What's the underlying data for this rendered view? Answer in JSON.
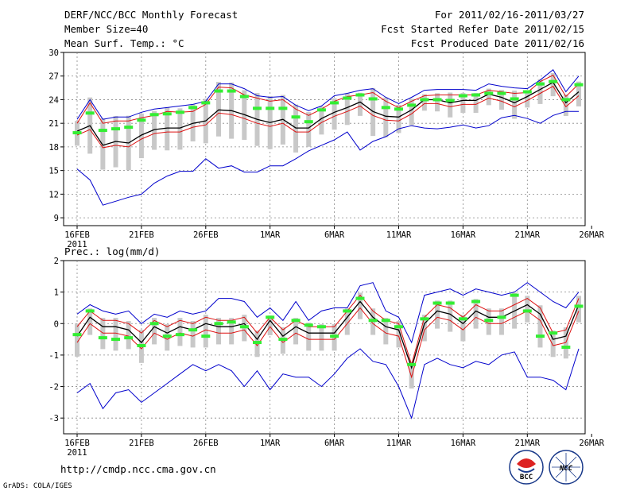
{
  "header": {
    "title": "DERF/NCC/BCC Monthly Forecast",
    "member_size": "Member Size=40",
    "variable": "Mean Surf. Temp.: °C",
    "period": "For 2011/02/16-2011/03/27",
    "started": "Fcst Started Refer Date 2011/02/15",
    "produced": "Fcst Produced Date 2011/02/16"
  },
  "footer": {
    "url": "http://cmdp.ncc.cma.gov.cn",
    "grads": "GrADS: COLA/IGES",
    "logo_bcc": "BCC",
    "logo_ncc": "NCC"
  },
  "colors": {
    "envelope": "#0000cc",
    "spread": "#dd1111",
    "mean": "#000000",
    "box": "#c8c8c8",
    "marker": "#33ee33",
    "grid": "#888888"
  },
  "chart_data": [
    {
      "type": "line",
      "title": "Mean Surf. Temp.: °C",
      "x_labels": [
        "16FEB",
        "21FEB",
        "26FEB",
        "1MAR",
        "6MAR",
        "11MAR",
        "16MAR",
        "21MAR",
        "26MAR"
      ],
      "x_year": "2011",
      "ylim": [
        8,
        30
      ],
      "y_ticks": [
        9,
        12,
        15,
        18,
        21,
        24,
        27,
        30
      ],
      "days": 40,
      "series": [
        {
          "name": "max",
          "values": [
            21.5,
            24,
            21.5,
            21.8,
            21.8,
            22.4,
            22.8,
            23,
            23.2,
            23.4,
            23.8,
            26,
            26,
            25.4,
            24.5,
            24.3,
            24.4,
            23.3,
            22.6,
            23.2,
            24.5,
            24.8,
            25.2,
            25.4,
            24.3,
            23.5,
            24.3,
            25.2,
            25.3,
            25.3,
            25.3,
            25.2,
            26,
            25.7,
            25.5,
            25.4,
            26.5,
            27.8,
            25,
            27
          ]
        },
        {
          "name": "upper",
          "values": [
            21,
            23.6,
            21,
            21.3,
            21.3,
            21.7,
            22,
            22.5,
            22.4,
            22.5,
            23.4,
            25.6,
            25.5,
            24.6,
            24.2,
            23.8,
            24,
            22.8,
            22,
            22.8,
            23.8,
            24.4,
            24.6,
            24.9,
            23.8,
            23,
            23.8,
            24.5,
            24.6,
            24.6,
            24.6,
            24.6,
            25.2,
            25,
            24.8,
            24.9,
            26.3,
            27.1,
            24.4,
            26
          ]
        },
        {
          "name": "mean",
          "values": [
            20,
            20.7,
            18.2,
            18.7,
            18.5,
            19.5,
            20.2,
            20.4,
            20.4,
            21,
            21.3,
            22.7,
            22.6,
            22.1,
            21.5,
            21.1,
            21.5,
            20.4,
            20.4,
            21.6,
            22.4,
            23,
            23.7,
            22.5,
            21.9,
            21.8,
            22.7,
            24,
            24,
            23.6,
            23.9,
            23.9,
            24.7,
            24.3,
            23.6,
            24.4,
            25.3,
            26.2,
            23.6,
            25
          ]
        },
        {
          "name": "lower",
          "values": [
            19.5,
            20.2,
            17.9,
            18.2,
            18,
            19,
            19.7,
            19.9,
            19.9,
            20.5,
            20.8,
            22.3,
            22.1,
            21.6,
            21,
            20.6,
            21,
            19.9,
            19.9,
            21.1,
            21.9,
            22.5,
            23.2,
            22,
            21.4,
            21.3,
            22.2,
            23.5,
            23.5,
            23.1,
            23.4,
            23.4,
            24.2,
            23.8,
            23.1,
            23.9,
            24.8,
            25.7,
            23.1,
            24.5
          ]
        },
        {
          "name": "min",
          "values": [
            15.2,
            13.8,
            10.6,
            11.1,
            11.6,
            12,
            13.4,
            14.3,
            14.9,
            14.9,
            16.5,
            15.3,
            15.6,
            14.8,
            14.8,
            15.6,
            15.6,
            16.5,
            17.5,
            18.2,
            18.9,
            19.9,
            17.6,
            18.7,
            19.3,
            20.3,
            20.7,
            20.4,
            20.3,
            20.5,
            20.8,
            20.4,
            20.7,
            21.7,
            22,
            21.6,
            21,
            22,
            22.5,
            22.5
          ]
        },
        {
          "name": "median_marker",
          "values": [
            19.8,
            22.3,
            20.1,
            20.3,
            20.5,
            21.4,
            22.1,
            22.2,
            22.4,
            23,
            23.6,
            25.1,
            25.1,
            24.4,
            22.9,
            22.9,
            22.9,
            21.8,
            21.2,
            22.7,
            23.6,
            24.2,
            24.6,
            24.1,
            23,
            22.8,
            23.3,
            24,
            24,
            23.9,
            24.5,
            24.6,
            24.8,
            24.8,
            24.1,
            25,
            26,
            26.3,
            24,
            25.9
          ]
        }
      ]
    },
    {
      "type": "line",
      "title": "Prec.: log(mm/d)",
      "x_labels": [
        "16FEB",
        "21FEB",
        "26FEB",
        "1MAR",
        "6MAR",
        "11MAR",
        "16MAR",
        "21MAR",
        "26MAR"
      ],
      "x_year": "2011",
      "ylim": [
        -3.5,
        2
      ],
      "y_ticks": [
        -3,
        -2,
        -1,
        0,
        1,
        2
      ],
      "days": 40,
      "series": [
        {
          "name": "max",
          "values": [
            0.3,
            0.6,
            0.4,
            0.3,
            0.4,
            0,
            0.3,
            0.2,
            0.4,
            0.3,
            0.4,
            0.8,
            0.8,
            0.7,
            0.2,
            0.5,
            0.1,
            0.7,
            0.1,
            0.4,
            0.5,
            0.5,
            1.2,
            1.3,
            0.4,
            0.2,
            -0.6,
            0.9,
            1,
            1.1,
            0.9,
            1.1,
            1,
            0.9,
            1,
            1.3,
            1,
            0.7,
            0.5,
            1
          ]
        },
        {
          "name": "upper",
          "values": [
            -0.1,
            0.4,
            0.1,
            0.1,
            0,
            -0.3,
            0.1,
            -0.1,
            0.1,
            0,
            0.2,
            0.1,
            0.1,
            0.2,
            -0.3,
            0.2,
            -0.2,
            0.1,
            -0.1,
            -0.1,
            -0.1,
            0.4,
            0.9,
            0.4,
            0.1,
            0,
            -1.3,
            0.2,
            0.6,
            0.5,
            0.2,
            0.6,
            0.4,
            0.4,
            0.6,
            0.8,
            0.5,
            -0.3,
            -0.2,
            0.8
          ]
        },
        {
          "name": "mean",
          "values": [
            -0.4,
            0.2,
            -0.1,
            -0.1,
            -0.2,
            -0.6,
            -0.1,
            -0.3,
            -0.1,
            -0.2,
            0,
            -0.1,
            -0.1,
            0,
            -0.5,
            0.1,
            -0.4,
            -0.1,
            -0.3,
            -0.3,
            -0.3,
            0.2,
            0.7,
            0.2,
            -0.1,
            -0.2,
            -1.4,
            0,
            0.4,
            0.3,
            0,
            0.4,
            0.2,
            0.2,
            0.4,
            0.6,
            0.3,
            -0.5,
            -0.4,
            0.6
          ]
        },
        {
          "name": "lower",
          "values": [
            -0.6,
            0,
            -0.3,
            -0.3,
            -0.4,
            -0.8,
            -0.3,
            -0.5,
            -0.3,
            -0.4,
            -0.2,
            -0.3,
            -0.3,
            -0.2,
            -0.7,
            -0.1,
            -0.6,
            -0.3,
            -0.5,
            -0.5,
            -0.5,
            0,
            0.5,
            0,
            -0.3,
            -0.4,
            -1.7,
            -0.2,
            0.2,
            0.1,
            -0.2,
            0.2,
            0,
            0,
            0.2,
            0.4,
            0.1,
            -0.7,
            -0.6,
            0.4
          ]
        },
        {
          "name": "min",
          "values": [
            -2.2,
            -1.9,
            -2.7,
            -2.2,
            -2.1,
            -2.5,
            -2.2,
            -1.9,
            -1.6,
            -1.3,
            -1.5,
            -1.3,
            -1.5,
            -2,
            -1.5,
            -2.1,
            -1.6,
            -1.7,
            -1.7,
            -2,
            -1.6,
            -1.1,
            -0.8,
            -1.2,
            -1.3,
            -2,
            -3,
            -1.3,
            -1.1,
            -1.3,
            -1.4,
            -1.2,
            -1.3,
            -1,
            -0.9,
            -1.7,
            -1.7,
            -1.8,
            -2.1,
            -0.8
          ]
        },
        {
          "name": "median_marker",
          "values": [
            -0.35,
            0.4,
            -0.45,
            -0.5,
            -0.45,
            -0.7,
            0,
            -0.4,
            -0.35,
            -0.2,
            -0.4,
            0,
            0.05,
            -0.1,
            -0.6,
            0.2,
            -0.5,
            0.1,
            -0.05,
            -0.1,
            -0.4,
            0.4,
            0.8,
            0.1,
            0.1,
            -0.1,
            -1.3,
            0.15,
            0.65,
            0.65,
            0.15,
            0.7,
            0.1,
            0.2,
            0.9,
            0.4,
            -0.4,
            -0.3,
            -0.75,
            0.55
          ]
        }
      ]
    }
  ]
}
